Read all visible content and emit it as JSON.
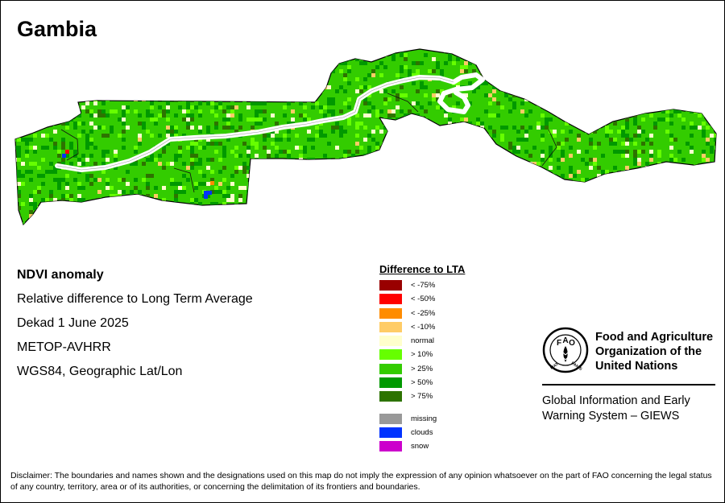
{
  "title": "Gambia",
  "info": [
    "NDVI anomaly",
    "Relative difference to Long Term Average",
    "Dekad 1 June 2025",
    "METOP-AVHRR",
    "WGS84, Geographic Lat/Lon"
  ],
  "legend": {
    "title": "Difference to LTA",
    "classes": [
      {
        "label": "< -75%",
        "color": "#990000"
      },
      {
        "label": "< -50%",
        "color": "#ff0000"
      },
      {
        "label": "< -25%",
        "color": "#ff8c00"
      },
      {
        "label": "< -10%",
        "color": "#ffcc66"
      },
      {
        "label": "normal",
        "color": "#ffffcc"
      },
      {
        "label": "> 10%",
        "color": "#66ff00"
      },
      {
        "label": "> 25%",
        "color": "#33cc00"
      },
      {
        "label": "> 50%",
        "color": "#009900"
      },
      {
        "label": "> 75%",
        "color": "#2d7300"
      }
    ],
    "other": [
      {
        "label": "missing",
        "color": "#999999"
      },
      {
        "label": "clouds",
        "color": "#0033ff"
      },
      {
        "label": "snow",
        "color": "#cc00cc"
      }
    ]
  },
  "fao": {
    "logo_text": [
      "F",
      "A",
      "O",
      "FIAT",
      "PANIS"
    ],
    "name": [
      "Food and Agriculture",
      "Organization of the",
      "United Nations"
    ],
    "giews": [
      "Global Information and Early",
      "Warning System – GIEWS"
    ]
  },
  "disclaimer": "Disclaimer: The boundaries and names shown and the designations used on this map do not imply the expression of any opinion whatsoever on the part of FAO concerning the legal status of any country, territory, area or of its authorities, or concerning the delimitation of its frontiers and boundaries.",
  "map_colors": {
    "land_base": "#33cc00",
    "river": "#ffffff",
    "border": "#000000"
  }
}
